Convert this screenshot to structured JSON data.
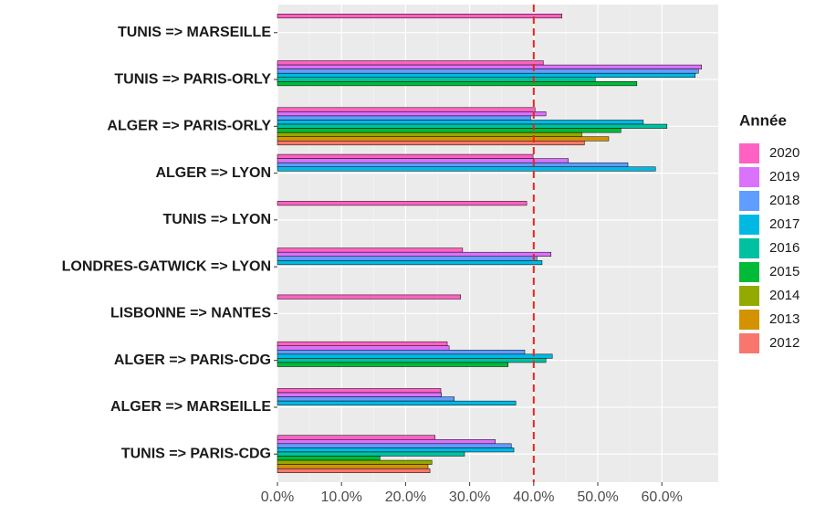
{
  "chart_data": {
    "type": "bar",
    "orientation": "horizontal",
    "categories": [
      "TUNIS => MARSEILLE",
      "TUNIS => PARIS-ORLY",
      "ALGER => PARIS-ORLY",
      "ALGER => LYON",
      "TUNIS => LYON",
      "LONDRES-GATWICK => LYON",
      "LISBONNE => NANTES",
      "ALGER => PARIS-CDG",
      "ALGER => MARSEILLE",
      "TUNIS => PARIS-CDG"
    ],
    "legend_title": "Année",
    "series": [
      {
        "name": "2020",
        "color": "#FF61C3",
        "values": [
          44.4,
          41.5,
          40.2,
          39.9,
          38.9,
          28.9,
          28.6,
          26.5,
          25.5,
          24.6
        ]
      },
      {
        "name": "2019",
        "color": "#DB72FB",
        "values": [
          null,
          66.2,
          41.9,
          45.4,
          null,
          42.7,
          null,
          26.8,
          25.6,
          34.0
        ]
      },
      {
        "name": "2018",
        "color": "#619CFF",
        "values": [
          null,
          65.7,
          39.5,
          54.7,
          null,
          40.5,
          null,
          38.6,
          27.6,
          36.5
        ]
      },
      {
        "name": "2017",
        "color": "#00B9E3",
        "values": [
          null,
          65.2,
          57.1,
          59.0,
          null,
          41.3,
          null,
          42.9,
          37.2,
          36.9
        ]
      },
      {
        "name": "2016",
        "color": "#00C19F",
        "values": [
          null,
          49.6,
          60.8,
          null,
          null,
          null,
          null,
          41.9,
          null,
          29.2
        ]
      },
      {
        "name": "2015",
        "color": "#00BA38",
        "values": [
          null,
          56.1,
          53.6,
          null,
          null,
          null,
          null,
          36.0,
          null,
          16.0
        ]
      },
      {
        "name": "2014",
        "color": "#93AA00",
        "values": [
          null,
          null,
          47.5,
          null,
          null,
          null,
          null,
          null,
          null,
          24.1
        ]
      },
      {
        "name": "2013",
        "color": "#D39200",
        "values": [
          null,
          null,
          51.7,
          null,
          null,
          null,
          null,
          null,
          null,
          23.5
        ]
      },
      {
        "name": "2012",
        "color": "#F8766D",
        "values": [
          null,
          null,
          47.9,
          null,
          null,
          null,
          null,
          null,
          null,
          23.8
        ]
      }
    ],
    "xlim": [
      0,
      68.8
    ],
    "xticks": [
      {
        "value": 0,
        "label": "0.0%"
      },
      {
        "value": 10,
        "label": "10.0%"
      },
      {
        "value": 20,
        "label": "20.0%"
      },
      {
        "value": 30,
        "label": "30.0%"
      },
      {
        "value": 40,
        "label": "40.0%"
      },
      {
        "value": 50,
        "label": "50.0%"
      },
      {
        "value": 60,
        "label": "60.0%"
      }
    ],
    "reference_line": {
      "value": 40,
      "color": "#E8251F"
    },
    "grid": true
  }
}
